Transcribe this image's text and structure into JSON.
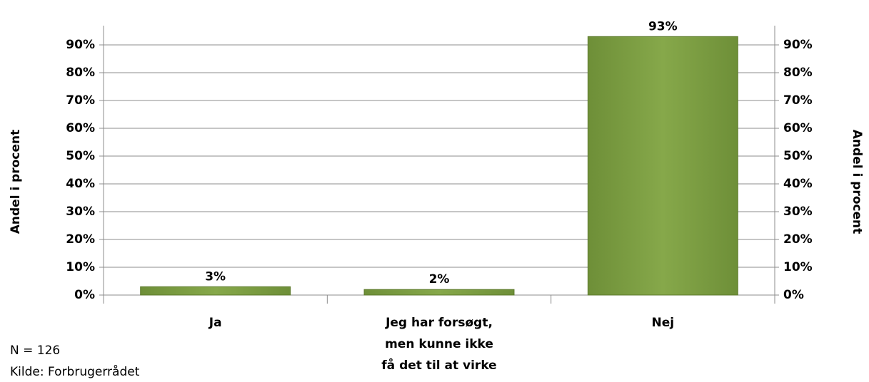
{
  "chart_data": {
    "type": "bar",
    "categories": [
      "Ja",
      "Jeg har forsøgt,\nmen kunne ikke\nfå det til at virke",
      "Nej"
    ],
    "values": [
      3,
      2,
      93
    ],
    "value_labels": [
      "3%",
      "2%",
      "93%"
    ],
    "color": "#7fa045",
    "ylim": [
      0,
      100
    ],
    "yticks": [
      {
        "value": 0,
        "label": "0%"
      },
      {
        "value": 10,
        "label": "10%"
      },
      {
        "value": 20,
        "label": "20%"
      },
      {
        "value": 30,
        "label": "30%"
      },
      {
        "value": 40,
        "label": "40%"
      },
      {
        "value": 50,
        "label": "50%"
      },
      {
        "value": 60,
        "label": "60%"
      },
      {
        "value": 70,
        "label": "70%"
      },
      {
        "value": 80,
        "label": "80%"
      },
      {
        "value": 90,
        "label": "90%"
      }
    ],
    "y2lim": [
      0,
      100
    ],
    "y2ticks": [
      {
        "value": 0,
        "label": "0%"
      },
      {
        "value": 10,
        "label": "10%"
      },
      {
        "value": 20,
        "label": "20%"
      },
      {
        "value": 30,
        "label": "30%"
      },
      {
        "value": 40,
        "label": "40%"
      },
      {
        "value": 50,
        "label": "50%"
      },
      {
        "value": 60,
        "label": "60%"
      },
      {
        "value": 70,
        "label": "70%"
      },
      {
        "value": 80,
        "label": "80%"
      },
      {
        "value": 90,
        "label": "90%"
      }
    ],
    "ylabel": "Andel i procent",
    "y2label": "Andel i procent",
    "grid": true,
    "notes": [
      "N = 126",
      "Kilde: Forbrugerrådet"
    ]
  }
}
